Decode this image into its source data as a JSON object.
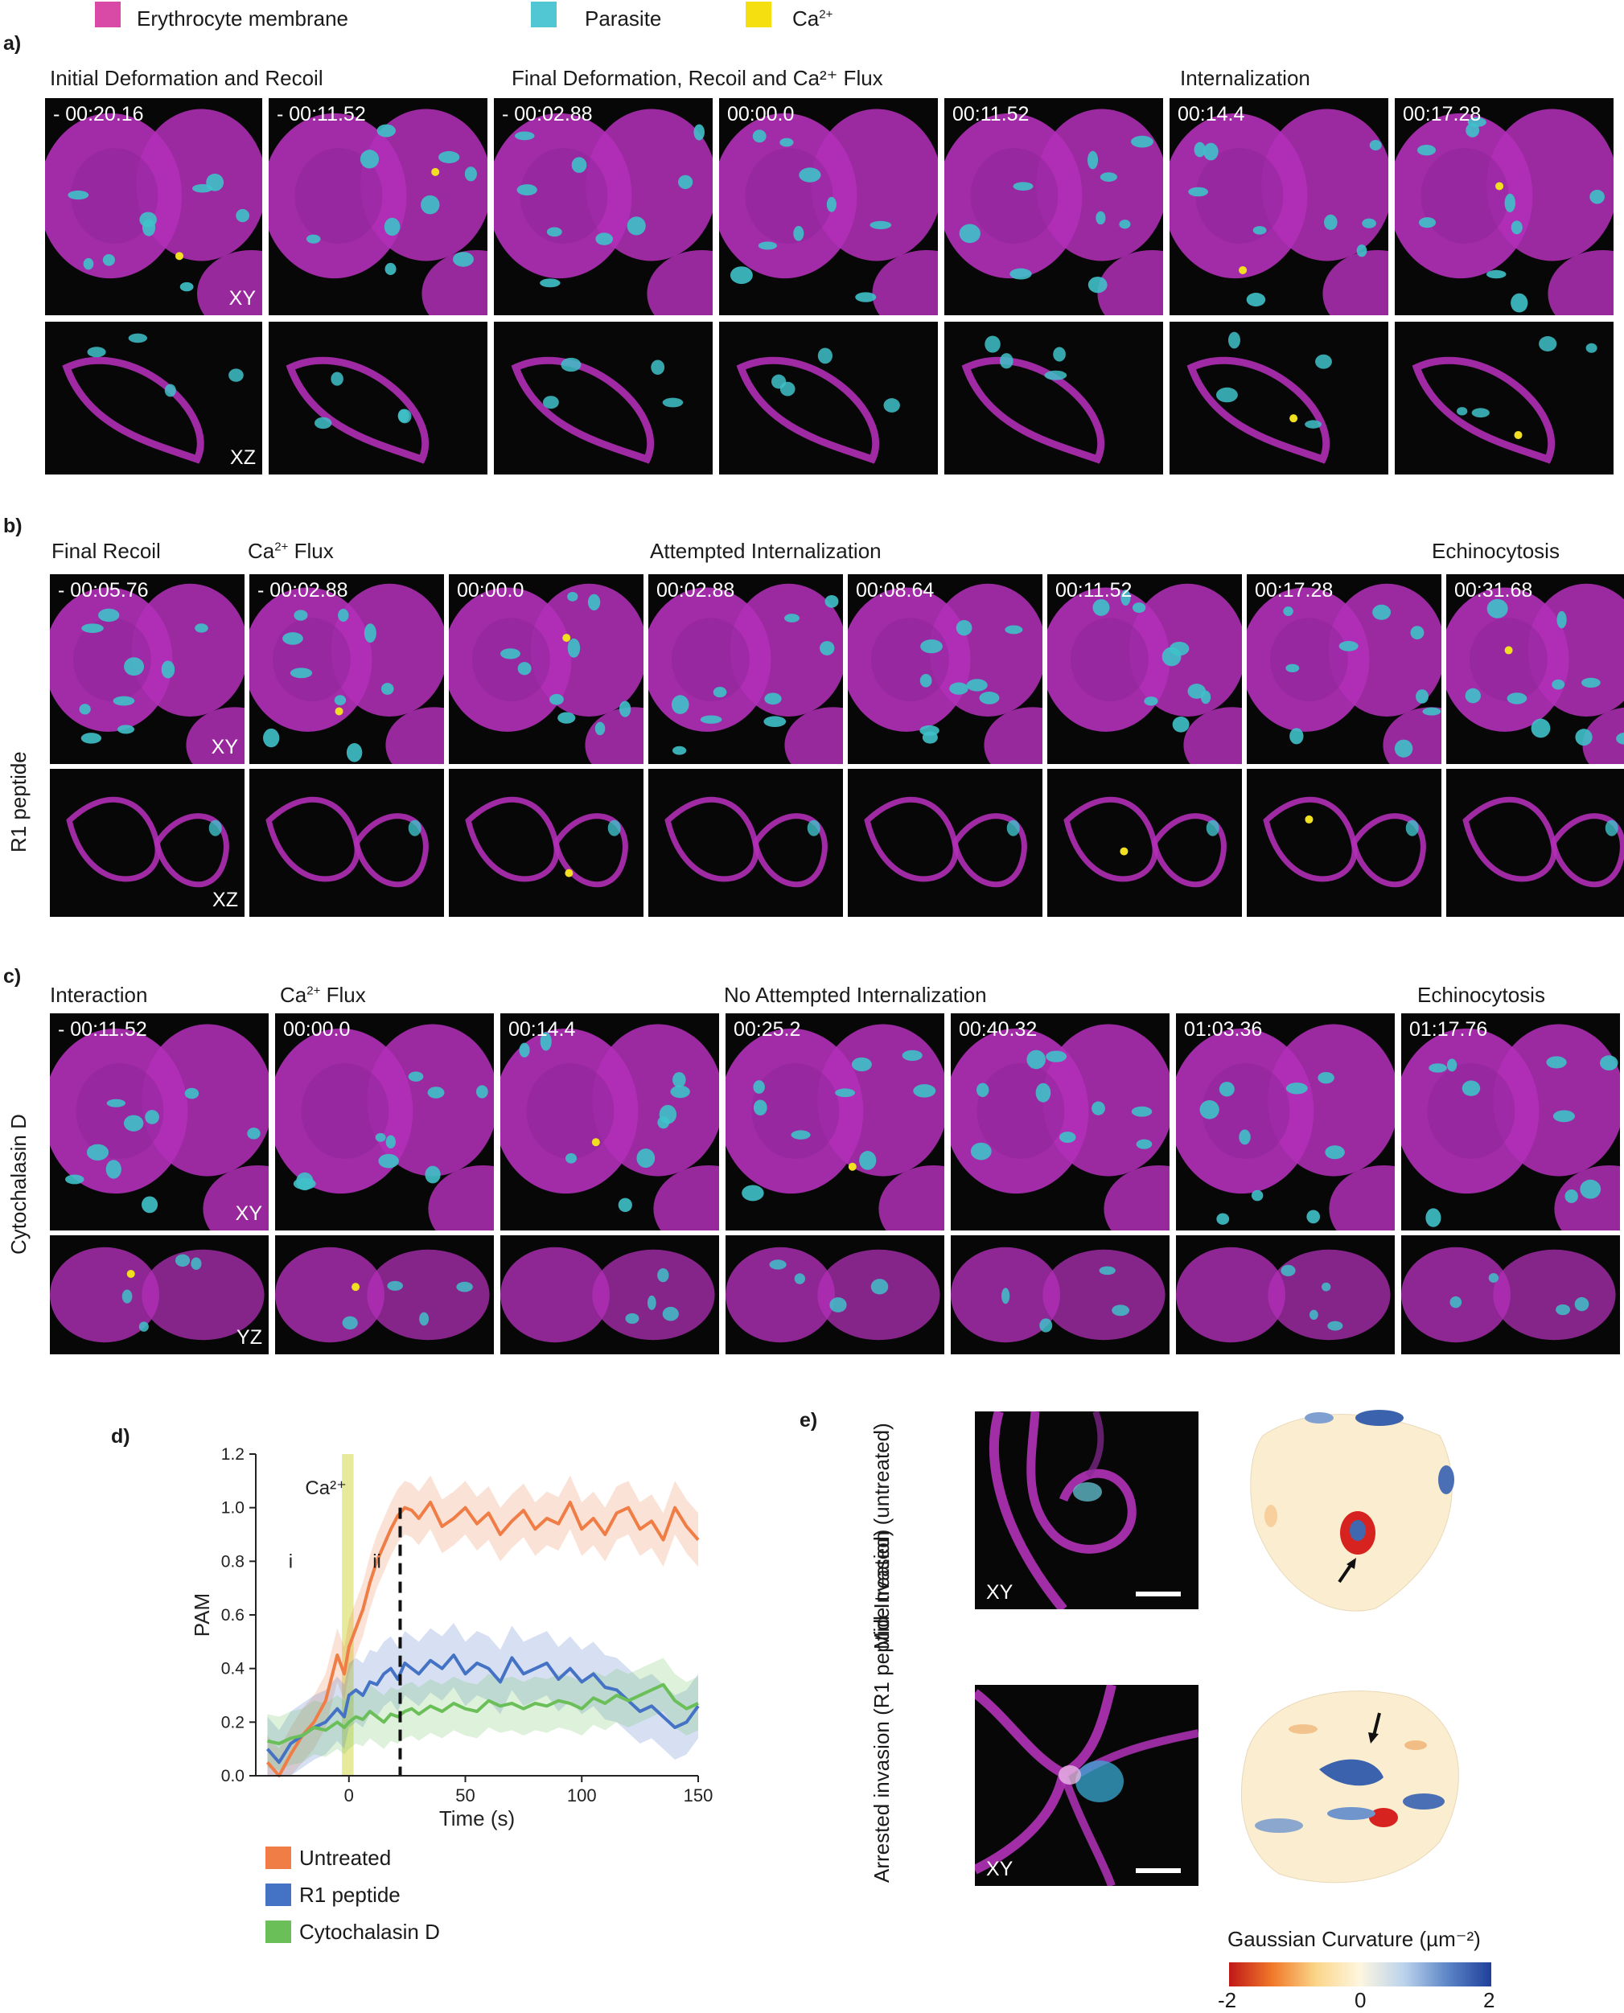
{
  "legend": [
    {
      "label": "Erythrocyte membrane",
      "color": "#d94aa6"
    },
    {
      "label": "Parasite",
      "color": "#52c7d4"
    },
    {
      "label": "Ca2+",
      "color": "#f5df10"
    }
  ],
  "panel_a": {
    "letter": "a)",
    "sections": [
      "Initial Deformation and Recoil",
      "Final Deformation, Recoil and Ca²⁺ Flux",
      "Internalization"
    ],
    "timestamps": [
      "- 00:20.16",
      "- 00:11.52",
      "- 00:02.88",
      "00:00.0",
      "00:11.52",
      "00:14.4",
      "00:17.28"
    ],
    "planes": [
      "XY",
      "XZ"
    ]
  },
  "panel_b": {
    "letter": "b)",
    "condition": "R1 peptide",
    "sections": [
      "Final Recoil",
      "Ca²⁺ Flux",
      "Attempted Internalization",
      "Echinocytosis"
    ],
    "timestamps": [
      "- 00:05.76",
      "- 00:02.88",
      "00:00.0",
      "00:02.88",
      "00:08.64",
      "00:11.52",
      "00:17.28",
      "00:31.68"
    ],
    "planes": [
      "XY",
      "XZ"
    ]
  },
  "panel_c": {
    "letter": "c)",
    "condition": "Cytochalasin D",
    "sections": [
      "Interaction",
      "Ca²⁺ Flux",
      "No Attempted Internalization",
      "Echinocytosis"
    ],
    "timestamps": [
      "- 00:11.52",
      "00:00.0",
      "00:14.4",
      "00:25.2",
      "00:40.32",
      "01:03.36",
      "01:17.76"
    ],
    "planes": [
      "XY",
      "YZ"
    ]
  },
  "panel_d": {
    "letter": "d)",
    "ca_label": "Ca²⁺",
    "phase_labels": [
      "i",
      "ii"
    ],
    "legend": [
      "Untreated",
      "R1 peptide",
      "Cytochalasin D"
    ]
  },
  "panel_e": {
    "letter": "e)",
    "rows": [
      "Mid-Invasion (untreated)",
      "Arrested invasion (R1 peptide treated)"
    ],
    "plane": "XY",
    "colorbar_title": "Gaussian Curvature (µm⁻²)",
    "colorbar_ticks": [
      "-2",
      "0",
      "2"
    ]
  },
  "chart_data": {
    "type": "line",
    "title": "",
    "xlabel": "Time (s)",
    "ylabel": "PAM",
    "xlim": [
      -40,
      150
    ],
    "ylim": [
      0,
      1.2
    ],
    "xticks": [
      0,
      50,
      100,
      150
    ],
    "yticks": [
      0.0,
      0.2,
      0.4,
      0.6,
      0.8,
      1.0,
      1.2
    ],
    "ca_band": [
      -3,
      2
    ],
    "dashed_line_x": 22,
    "grid": false,
    "legend_position": "below",
    "x": [
      -35,
      -30,
      -25,
      -20,
      -15,
      -10,
      -5,
      -2,
      0,
      3,
      6,
      9,
      12,
      15,
      18,
      21,
      24,
      27,
      30,
      35,
      40,
      45,
      50,
      55,
      60,
      65,
      70,
      75,
      80,
      85,
      90,
      95,
      100,
      105,
      110,
      115,
      120,
      125,
      130,
      135,
      140,
      145,
      150
    ],
    "series": [
      {
        "name": "Untreated",
        "color": "#ef7d45",
        "values": [
          0.05,
          0.0,
          0.08,
          0.15,
          0.2,
          0.28,
          0.45,
          0.38,
          0.48,
          0.55,
          0.62,
          0.72,
          0.8,
          0.86,
          0.92,
          0.97,
          1.0,
          0.99,
          0.96,
          1.02,
          0.93,
          0.96,
          1.0,
          0.94,
          0.98,
          0.9,
          0.95,
          0.99,
          0.92,
          0.96,
          0.94,
          1.02,
          0.92,
          0.96,
          0.9,
          0.98,
          1.0,
          0.92,
          0.95,
          0.88,
          1.0,
          0.93,
          0.88
        ],
        "band": 0.1
      },
      {
        "name": "R1 peptide",
        "color": "#4472c4",
        "values": [
          0.1,
          0.05,
          0.12,
          0.15,
          0.18,
          0.2,
          0.25,
          0.22,
          0.3,
          0.32,
          0.3,
          0.35,
          0.34,
          0.38,
          0.4,
          0.36,
          0.42,
          0.4,
          0.38,
          0.43,
          0.4,
          0.45,
          0.38,
          0.42,
          0.4,
          0.35,
          0.44,
          0.38,
          0.4,
          0.42,
          0.36,
          0.4,
          0.35,
          0.38,
          0.33,
          0.32,
          0.28,
          0.24,
          0.26,
          0.22,
          0.18,
          0.2,
          0.26
        ],
        "band": 0.12
      },
      {
        "name": "Cytochalasin D",
        "color": "#6bbf59",
        "values": [
          0.13,
          0.12,
          0.14,
          0.15,
          0.18,
          0.17,
          0.2,
          0.18,
          0.2,
          0.22,
          0.21,
          0.24,
          0.22,
          0.2,
          0.23,
          0.22,
          0.24,
          0.25,
          0.23,
          0.26,
          0.24,
          0.27,
          0.25,
          0.24,
          0.28,
          0.26,
          0.27,
          0.25,
          0.27,
          0.26,
          0.28,
          0.27,
          0.25,
          0.29,
          0.27,
          0.3,
          0.28,
          0.3,
          0.32,
          0.34,
          0.28,
          0.25,
          0.27
        ],
        "band": 0.1
      }
    ]
  }
}
